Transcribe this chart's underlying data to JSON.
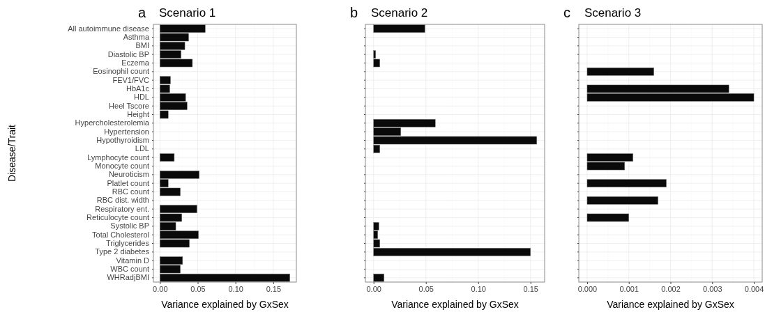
{
  "chart_data": [
    {
      "type": "bar",
      "orientation": "horizontal",
      "title": "Scenario 1",
      "annotations": [
        "a"
      ],
      "xlabel": "Variance explained by GxSex",
      "ylabel": "Disease/Trait",
      "color": "#0a0a0a",
      "grid": true,
      "categories": [
        "All autoimmune disease",
        "Asthma",
        "BMI",
        "Diastolic BP",
        "Eczema",
        "Eosinophil count",
        "FEV1/FVC",
        "HbA1c",
        "HDL",
        "Heel Tscore",
        "Height",
        "Hypercholesterolemia",
        "Hypertension",
        "Hypothyroidism",
        "LDL",
        "Lymphocyte count",
        "Monocyte count",
        "Neuroticism",
        "Platlet count",
        "RBC count",
        "RBC dist. width",
        "Respiratory ent.",
        "Reticulocyte count",
        "Systolic BP",
        "Total Cholesterol",
        "Triglycerides",
        "Type 2 diabetes",
        "Vitamin D",
        "WBC count",
        "WHRadjBMI"
      ],
      "values": [
        0.06,
        0.038,
        0.033,
        0.028,
        0.043,
        0,
        0.014,
        0.013,
        0.034,
        0.036,
        0.011,
        0,
        0,
        0,
        0,
        0.019,
        0,
        0.052,
        0.011,
        0.027,
        0,
        0.049,
        0.029,
        0.021,
        0.051,
        0.039,
        0,
        0.03,
        0.027,
        0.172
      ],
      "xlim": [
        -0.0086,
        0.1806
      ],
      "xticks": [
        {
          "value": 0,
          "label": "0.00"
        },
        {
          "value": 0.05,
          "label": "0.05"
        },
        {
          "value": 0.1,
          "label": "0.10"
        },
        {
          "value": 0.15,
          "label": "0.15"
        }
      ]
    },
    {
      "type": "bar",
      "orientation": "horizontal",
      "title": "Scenario 2",
      "annotations": [
        "b"
      ],
      "xlabel": "Variance explained by GxSex",
      "color": "#0a0a0a",
      "grid": true,
      "tick_labels": "x",
      "categories": [
        null,
        null,
        null,
        null,
        null,
        null,
        null,
        null,
        null,
        null,
        null,
        null,
        null,
        null,
        null,
        null,
        null,
        null,
        null,
        null,
        null,
        null,
        null,
        null,
        null,
        null,
        null,
        null,
        null,
        null
      ],
      "values": [
        0.049,
        0,
        0,
        0.002,
        0.006,
        0,
        0,
        0,
        0,
        0,
        0,
        0.059,
        0.026,
        0.156,
        0.006,
        0,
        0,
        0,
        0,
        0,
        0,
        0,
        0,
        0.005,
        0.004,
        0.006,
        0.15,
        0,
        0,
        0.01
      ],
      "xlim": [
        -0.0078,
        0.1635
      ],
      "xticks": [
        {
          "value": 0,
          "label": "0.00"
        },
        {
          "value": 0.05,
          "label": "0.05"
        },
        {
          "value": 0.1,
          "label": "0.10"
        },
        {
          "value": 0.15,
          "label": "0.15"
        }
      ]
    },
    {
      "type": "bar",
      "orientation": "horizontal",
      "title": "Scenario 3",
      "annotations": [
        "c"
      ],
      "xlabel": "Variance explained by GxSex",
      "color": "#0a0a0a",
      "grid": true,
      "tick_labels": "x",
      "categories": [
        null,
        null,
        null,
        null,
        null,
        null,
        null,
        null,
        null,
        null,
        null,
        null,
        null,
        null,
        null,
        null,
        null,
        null,
        null,
        null,
        null,
        null,
        null,
        null,
        null,
        null,
        null,
        null,
        null,
        null
      ],
      "values": [
        0,
        0,
        0,
        0,
        0,
        0.0016,
        0,
        0.0034,
        0.004,
        0,
        0,
        0,
        0,
        0,
        0,
        0.0011,
        0.0009,
        0,
        0.0019,
        0,
        0.0017,
        0,
        0.001,
        0,
        0,
        0,
        0,
        0,
        0,
        0
      ],
      "xlim": [
        -0.0002,
        0.0042
      ],
      "xticks": [
        {
          "value": 0,
          "label": "0.000"
        },
        {
          "value": 0.001,
          "label": "0.001"
        },
        {
          "value": 0.002,
          "label": "0.002"
        },
        {
          "value": 0.003,
          "label": "0.003"
        },
        {
          "value": 0.004,
          "label": "0.004"
        }
      ]
    }
  ]
}
